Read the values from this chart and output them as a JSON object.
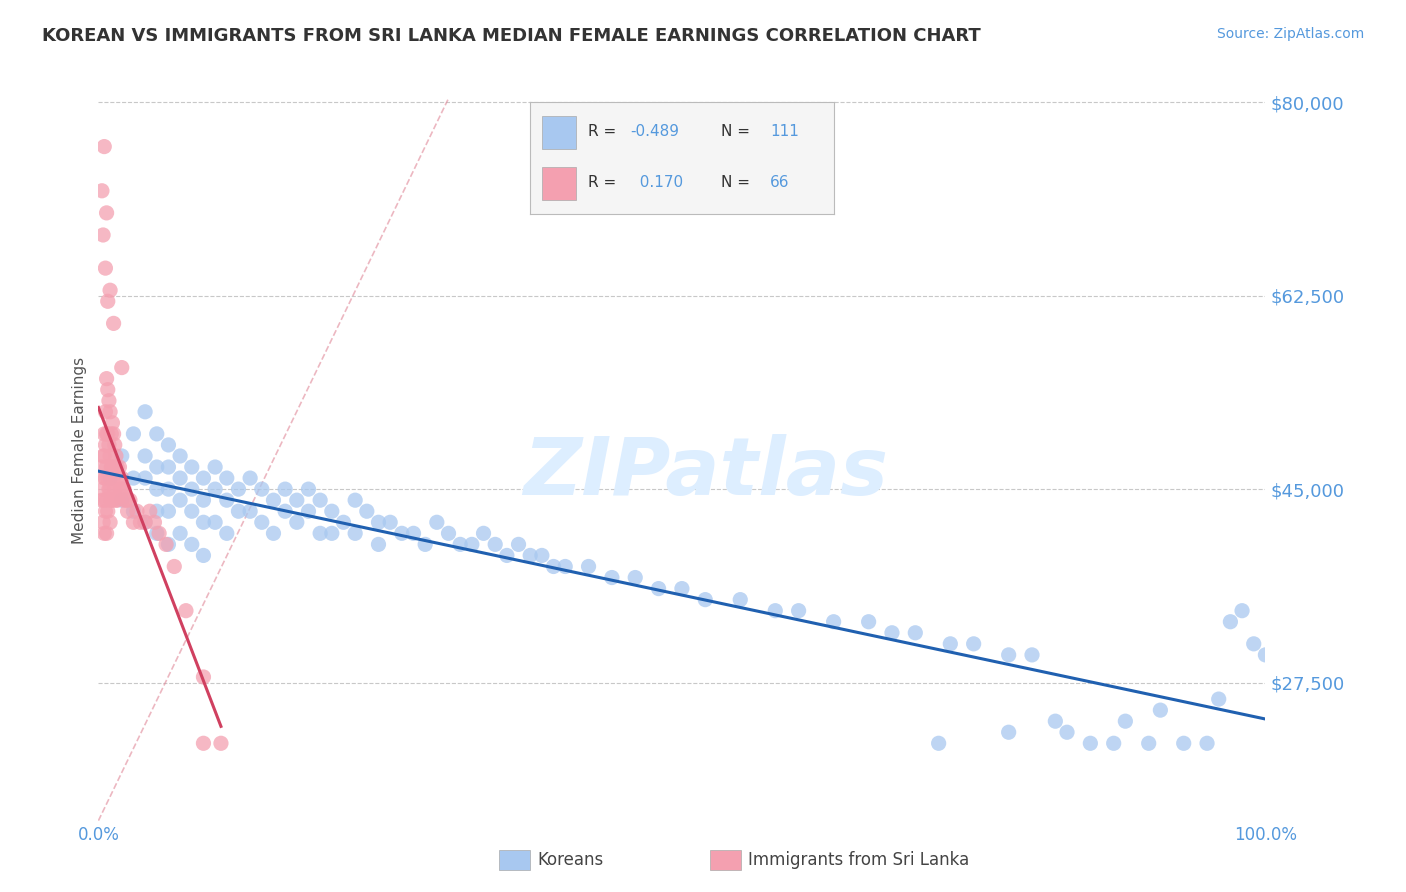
{
  "title": "KOREAN VS IMMIGRANTS FROM SRI LANKA MEDIAN FEMALE EARNINGS CORRELATION CHART",
  "source": "Source: ZipAtlas.com",
  "ylabel": "Median Female Earnings",
  "watermark": "ZIPatlas",
  "x_min": 0.0,
  "x_max": 1.0,
  "y_min": 15000,
  "y_max": 82000,
  "yticks": [
    27500,
    45000,
    62500,
    80000
  ],
  "ytick_labels": [
    "$27,500",
    "$45,000",
    "$62,500",
    "$80,000"
  ],
  "xtick_labels": [
    "0.0%",
    "100.0%"
  ],
  "korean_color": "#a8c8f0",
  "srilanka_color": "#f4a0b0",
  "korean_line_color": "#2060b0",
  "srilanka_line_color": "#d04060",
  "korean_R": -0.489,
  "korean_N": 111,
  "srilanka_R": 0.17,
  "srilanka_N": 66,
  "legend_entries": [
    "Koreans",
    "Immigrants from Sri Lanka"
  ],
  "legend_box_colors": [
    "#a8c8f0",
    "#f4a0b0"
  ],
  "background_color": "#ffffff",
  "grid_color": "#c8c8c8",
  "title_color": "#333333",
  "axis_label_color": "#5599dd",
  "watermark_color": "#ddeeff",
  "korean_scatter_x": [
    0.01,
    0.02,
    0.02,
    0.03,
    0.03,
    0.03,
    0.04,
    0.04,
    0.04,
    0.04,
    0.05,
    0.05,
    0.05,
    0.05,
    0.05,
    0.06,
    0.06,
    0.06,
    0.06,
    0.06,
    0.07,
    0.07,
    0.07,
    0.07,
    0.08,
    0.08,
    0.08,
    0.08,
    0.09,
    0.09,
    0.09,
    0.09,
    0.1,
    0.1,
    0.1,
    0.11,
    0.11,
    0.11,
    0.12,
    0.12,
    0.13,
    0.13,
    0.14,
    0.14,
    0.15,
    0.15,
    0.16,
    0.16,
    0.17,
    0.17,
    0.18,
    0.18,
    0.19,
    0.19,
    0.2,
    0.2,
    0.21,
    0.22,
    0.22,
    0.23,
    0.24,
    0.24,
    0.25,
    0.26,
    0.27,
    0.28,
    0.29,
    0.3,
    0.31,
    0.32,
    0.33,
    0.34,
    0.35,
    0.36,
    0.37,
    0.38,
    0.39,
    0.4,
    0.42,
    0.44,
    0.46,
    0.48,
    0.5,
    0.52,
    0.55,
    0.58,
    0.6,
    0.63,
    0.66,
    0.68,
    0.7,
    0.73,
    0.75,
    0.78,
    0.8,
    0.83,
    0.85,
    0.87,
    0.9,
    0.93,
    0.95,
    0.97,
    0.98,
    0.99,
    1.0,
    0.72,
    0.78,
    0.82,
    0.88,
    0.91,
    0.96
  ],
  "korean_scatter_y": [
    46000,
    48000,
    44000,
    50000,
    46000,
    43000,
    52000,
    48000,
    46000,
    42000,
    50000,
    47000,
    45000,
    43000,
    41000,
    49000,
    47000,
    45000,
    43000,
    40000,
    48000,
    46000,
    44000,
    41000,
    47000,
    45000,
    43000,
    40000,
    46000,
    44000,
    42000,
    39000,
    47000,
    45000,
    42000,
    46000,
    44000,
    41000,
    45000,
    43000,
    46000,
    43000,
    45000,
    42000,
    44000,
    41000,
    45000,
    43000,
    44000,
    42000,
    45000,
    43000,
    44000,
    41000,
    43000,
    41000,
    42000,
    44000,
    41000,
    43000,
    42000,
    40000,
    42000,
    41000,
    41000,
    40000,
    42000,
    41000,
    40000,
    40000,
    41000,
    40000,
    39000,
    40000,
    39000,
    39000,
    38000,
    38000,
    38000,
    37000,
    37000,
    36000,
    36000,
    35000,
    35000,
    34000,
    34000,
    33000,
    33000,
    32000,
    32000,
    31000,
    31000,
    30000,
    30000,
    23000,
    22000,
    22000,
    22000,
    22000,
    22000,
    33000,
    34000,
    31000,
    30000,
    22000,
    23000,
    24000,
    24000,
    25000,
    26000
  ],
  "srilanka_scatter_x": [
    0.003,
    0.003,
    0.004,
    0.004,
    0.004,
    0.005,
    0.005,
    0.005,
    0.005,
    0.005,
    0.006,
    0.006,
    0.006,
    0.006,
    0.007,
    0.007,
    0.007,
    0.007,
    0.007,
    0.008,
    0.008,
    0.008,
    0.008,
    0.009,
    0.009,
    0.009,
    0.01,
    0.01,
    0.01,
    0.01,
    0.011,
    0.011,
    0.011,
    0.012,
    0.012,
    0.012,
    0.013,
    0.013,
    0.014,
    0.014,
    0.015,
    0.015,
    0.016,
    0.016,
    0.017,
    0.018,
    0.019,
    0.02,
    0.021,
    0.022,
    0.023,
    0.024,
    0.025,
    0.027,
    0.03,
    0.033,
    0.036,
    0.04,
    0.044,
    0.048,
    0.052,
    0.058,
    0.065,
    0.075,
    0.09,
    0.105
  ],
  "srilanka_scatter_y": [
    47000,
    44000,
    48000,
    45000,
    42000,
    50000,
    48000,
    46000,
    44000,
    41000,
    52000,
    49000,
    46000,
    43000,
    55000,
    50000,
    47000,
    44000,
    41000,
    54000,
    50000,
    46000,
    43000,
    53000,
    49000,
    45000,
    52000,
    48000,
    45000,
    42000,
    50000,
    47000,
    44000,
    51000,
    47000,
    44000,
    50000,
    46000,
    49000,
    45000,
    48000,
    44000,
    47000,
    44000,
    46000,
    47000,
    45000,
    46000,
    45000,
    45000,
    44000,
    44000,
    43000,
    44000,
    42000,
    43000,
    42000,
    42000,
    43000,
    42000,
    41000,
    40000,
    38000,
    34000,
    28000,
    22000
  ],
  "srilanka_outliers_x": [
    0.003,
    0.004,
    0.005,
    0.006,
    0.007,
    0.008,
    0.01,
    0.013,
    0.02,
    0.09
  ],
  "srilanka_outliers_y": [
    72000,
    68000,
    76000,
    65000,
    70000,
    62000,
    63000,
    60000,
    56000,
    22000
  ]
}
